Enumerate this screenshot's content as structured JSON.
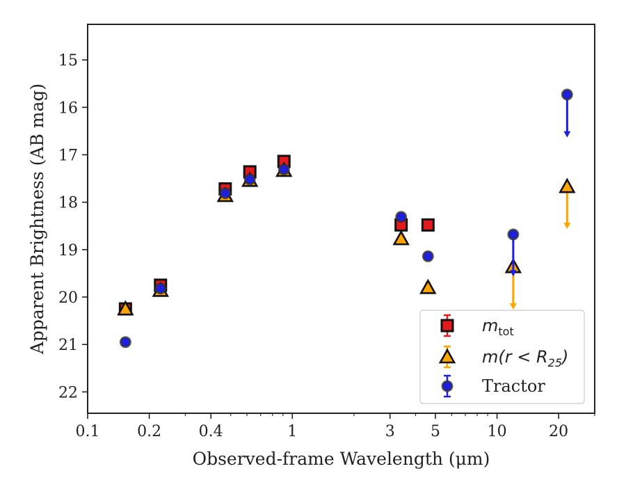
{
  "chart_data": {
    "type": "scatter",
    "xlabel": "Observed-frame Wavelength (μm)",
    "ylabel": "Apparent Brightness (AB mag)",
    "x_scale": "log",
    "xlim": [
      0.1,
      30
    ],
    "ylim": [
      22.45,
      14.25
    ],
    "y_inverted": true,
    "x_ticks": [
      0.1,
      0.2,
      0.4,
      1,
      3,
      5,
      10,
      20
    ],
    "x_tick_labels": [
      "0.1",
      "0.2",
      "0.4",
      "1",
      "3",
      "5",
      "10",
      "20"
    ],
    "y_ticks": [
      15,
      16,
      17,
      18,
      19,
      20,
      21,
      22
    ],
    "y_tick_labels": [
      "15",
      "16",
      "17",
      "18",
      "19",
      "20",
      "21",
      "22"
    ],
    "grid": false,
    "legend_position": "lower-right",
    "series": [
      {
        "name": "m_tot",
        "label_main": "m",
        "label_sub": "tot",
        "marker": "square",
        "color": "#e31a1c",
        "points": [
          {
            "x": 0.153,
            "y": 20.25,
            "err": 0.05
          },
          {
            "x": 0.227,
            "y": 19.75,
            "err": 0.05
          },
          {
            "x": 0.47,
            "y": 17.72,
            "err": 0.05
          },
          {
            "x": 0.62,
            "y": 17.36,
            "err": 0.05
          },
          {
            "x": 0.91,
            "y": 17.14,
            "err": 0.05
          },
          {
            "x": 3.4,
            "y": 18.48,
            "err": 0.05
          },
          {
            "x": 4.6,
            "y": 18.48,
            "err": 0.05
          }
        ]
      },
      {
        "name": "m(r < R_25)",
        "label_main": "m(r < R",
        "label_sub": "25",
        "label_end": ")",
        "marker": "triangle",
        "color": "#ffa500",
        "points": [
          {
            "x": 0.153,
            "y": 20.25,
            "err": 0.05
          },
          {
            "x": 0.227,
            "y": 19.86,
            "err": 0.05
          },
          {
            "x": 0.47,
            "y": 17.86,
            "err": 0.05
          },
          {
            "x": 0.62,
            "y": 17.54,
            "err": 0.05
          },
          {
            "x": 0.91,
            "y": 17.33,
            "err": 0.05
          },
          {
            "x": 3.4,
            "y": 18.77,
            "err": 0.05
          },
          {
            "x": 4.6,
            "y": 19.8,
            "err": 0.1
          },
          {
            "x": 12.0,
            "y": 19.36,
            "upper_limit": true,
            "limit_to": 20.25
          },
          {
            "x": 22.0,
            "y": 17.67,
            "upper_limit": true,
            "limit_to": 18.55
          }
        ]
      },
      {
        "name": "Tractor",
        "label_main": "Tractor",
        "marker": "circle",
        "color": "#1f1fe0",
        "points": [
          {
            "x": 0.153,
            "y": 20.95,
            "err": 0.05
          },
          {
            "x": 0.227,
            "y": 19.82,
            "err": 0.05
          },
          {
            "x": 0.47,
            "y": 17.81,
            "err": 0.05
          },
          {
            "x": 0.62,
            "y": 17.52,
            "err": 0.05
          },
          {
            "x": 0.91,
            "y": 17.31,
            "err": 0.05
          },
          {
            "x": 3.4,
            "y": 18.31,
            "err": 0.08
          },
          {
            "x": 4.6,
            "y": 19.14,
            "err": 0.08
          },
          {
            "x": 12.0,
            "y": 18.68,
            "upper_limit": true,
            "limit_to": 19.55
          },
          {
            "x": 22.0,
            "y": 15.73,
            "upper_limit": true,
            "limit_to": 16.62
          }
        ]
      }
    ]
  }
}
